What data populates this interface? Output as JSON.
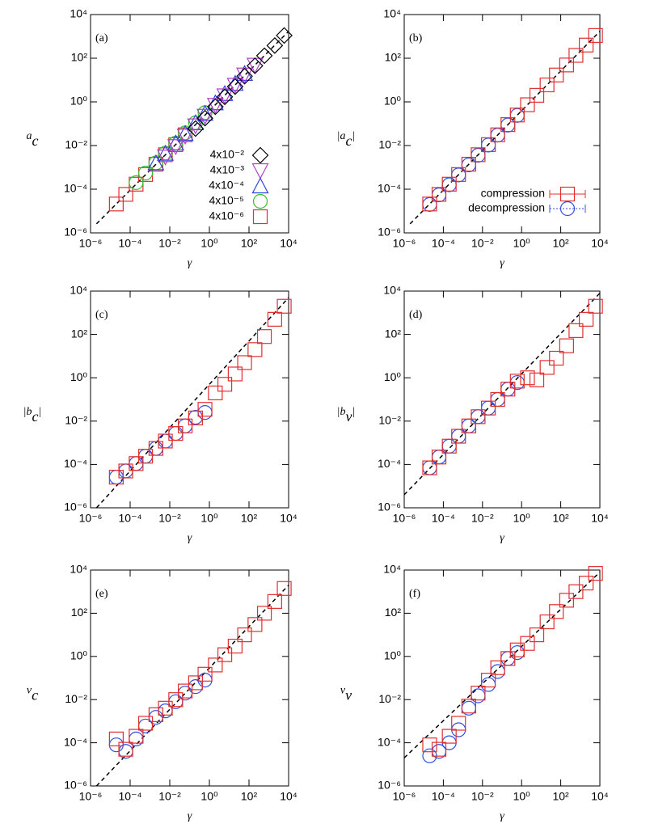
{
  "chart_data": [
    {
      "type": "scatter",
      "panel": "(a)",
      "xscale": "log",
      "yscale": "log",
      "xlabel": "γ",
      "ylabel": [
        {
          "text": "a"
        },
        {
          "text": "c",
          "sub": true
        }
      ],
      "xlim": [
        1e-06,
        10000.0
      ],
      "ylim": [
        1e-06,
        10000.0
      ],
      "xticks": [
        {
          "value": 1e-06,
          "label": "10⁻⁶"
        },
        {
          "value": 0.0001,
          "label": "10⁻⁴"
        },
        {
          "value": 0.01,
          "label": "10⁻²"
        },
        {
          "value": 1,
          "label": "10⁰"
        },
        {
          "value": 100,
          "label": "10²"
        },
        {
          "value": 10000,
          "label": "10⁴"
        }
      ],
      "yticks": [
        {
          "value": 1e-06,
          "label": "10⁻⁶"
        },
        {
          "value": 0.0001,
          "label": "10⁻⁴"
        },
        {
          "value": 0.01,
          "label": "10⁻²"
        },
        {
          "value": 1,
          "label": "10⁰"
        },
        {
          "value": 100,
          "label": "10²"
        },
        {
          "value": 10000,
          "label": "10⁴"
        }
      ],
      "legend": "bottom-right",
      "fit": {
        "x": [
          2e-06,
          10000.0
        ],
        "values": [
          2.6e-06,
          1700
        ]
      },
      "series": [
        {
          "name": "4x10⁻²",
          "marker": "diamond",
          "color": "#000000",
          "x": [
            0.2,
            0.6,
            2,
            6,
            20,
            60,
            200,
            600,
            2000,
            6000
          ],
          "values": [
            0.06,
            0.18,
            0.6,
            1.7,
            5,
            15,
            45,
            130,
            380,
            1100
          ]
        },
        {
          "name": "4x10⁻³",
          "marker": "triangle-down",
          "color": "#b040c8",
          "x": [
            0.006,
            0.02,
            0.06,
            0.2,
            0.6,
            2,
            6,
            20,
            60,
            200
          ],
          "values": [
            0.003,
            0.009,
            0.027,
            0.08,
            0.22,
            0.7,
            1.9,
            5.8,
            17,
            48
          ]
        },
        {
          "name": "4x10⁻⁴",
          "marker": "triangle-up",
          "color": "#3040e0",
          "x": [
            0.002,
            0.006,
            0.02,
            0.06,
            0.2,
            0.6,
            2,
            6,
            20,
            60
          ],
          "values": [
            0.0016,
            0.0044,
            0.013,
            0.036,
            0.11,
            0.3,
            0.9,
            2.4,
            7,
            20
          ]
        },
        {
          "name": "4x10⁻⁵",
          "marker": "circle",
          "color": "#30c030",
          "x": [
            0.0002,
            0.0006,
            0.002,
            0.006,
            0.02,
            0.06,
            0.2,
            0.6
          ],
          "values": [
            0.0002,
            0.00055,
            0.0016,
            0.0045,
            0.013,
            0.038,
            0.11,
            0.32
          ]
        },
        {
          "name": "4x10⁻⁶",
          "marker": "square",
          "color": "#e03030",
          "x": [
            2e-05,
            6e-05,
            0.0002,
            0.0006,
            0.002,
            0.006,
            0.02,
            0.06
          ],
          "values": [
            2.1e-05,
            5.8e-05,
            0.00017,
            0.00047,
            0.0014,
            0.0038,
            0.011,
            0.031
          ]
        }
      ]
    },
    {
      "type": "scatter",
      "panel": "(b)",
      "xscale": "log",
      "yscale": "log",
      "xlabel": "γ",
      "ylabel": [
        {
          "text": "|a"
        },
        {
          "text": "c",
          "sub": true
        },
        {
          "text": "|"
        }
      ],
      "xlim": [
        1e-06,
        10000.0
      ],
      "ylim": [
        1e-06,
        10000.0
      ],
      "xticks": [
        {
          "value": 1e-06,
          "label": "10⁻⁶"
        },
        {
          "value": 0.0001,
          "label": "10⁻⁴"
        },
        {
          "value": 0.01,
          "label": "10⁻²"
        },
        {
          "value": 1,
          "label": "10⁰"
        },
        {
          "value": 100,
          "label": "10²"
        },
        {
          "value": 10000,
          "label": "10⁴"
        }
      ],
      "yticks": [
        {
          "value": 1e-06,
          "label": "10⁻⁶"
        },
        {
          "value": 0.0001,
          "label": "10⁻⁴"
        },
        {
          "value": 0.01,
          "label": "10⁻²"
        },
        {
          "value": 1,
          "label": "10⁰"
        },
        {
          "value": 100,
          "label": "10²"
        },
        {
          "value": 10000,
          "label": "10⁴"
        }
      ],
      "legend": "bottom-right",
      "fit": {
        "x": [
          2e-06,
          10000.0
        ],
        "values": [
          2.6e-06,
          1700
        ]
      },
      "series": [
        {
          "name": "compression",
          "marker": "square",
          "color": "#e03030",
          "line_style": "solid",
          "x": [
            2e-05,
            6e-05,
            0.0002,
            0.0006,
            0.002,
            0.006,
            0.02,
            0.06,
            0.2,
            0.6,
            2,
            6,
            20,
            60,
            200,
            600,
            2000,
            6000
          ],
          "values": [
            2.1e-05,
            5.8e-05,
            0.00017,
            0.00047,
            0.0014,
            0.0038,
            0.011,
            0.031,
            0.091,
            0.25,
            0.74,
            2.0,
            6.0,
            17,
            49,
            135,
            400,
            1100
          ]
        },
        {
          "name": "decompression",
          "marker": "circle",
          "color": "#3050e0",
          "line_style": "dotted",
          "x": [
            2e-05,
            6e-05,
            0.0002,
            0.0006,
            0.002,
            0.006,
            0.02,
            0.06,
            0.2,
            0.6
          ],
          "values": [
            2e-05,
            5.5e-05,
            0.00016,
            0.00045,
            0.0013,
            0.0036,
            0.0105,
            0.03,
            0.087,
            0.24
          ]
        }
      ]
    },
    {
      "type": "scatter",
      "panel": "(c)",
      "xscale": "log",
      "yscale": "log",
      "xlabel": "γ",
      "ylabel": [
        {
          "text": "|b"
        },
        {
          "text": "c",
          "sub": true
        },
        {
          "text": "|"
        }
      ],
      "xlim": [
        1e-06,
        10000.0
      ],
      "ylim": [
        1e-06,
        10000.0
      ],
      "xticks": [
        {
          "value": 1e-06,
          "label": "10⁻⁶"
        },
        {
          "value": 0.0001,
          "label": "10⁻⁴"
        },
        {
          "value": 0.01,
          "label": "10⁻²"
        },
        {
          "value": 1,
          "label": "10⁰"
        },
        {
          "value": 100,
          "label": "10²"
        },
        {
          "value": 10000,
          "label": "10⁴"
        }
      ],
      "yticks": [
        {
          "value": 1e-06,
          "label": "10⁻⁶"
        },
        {
          "value": 0.0001,
          "label": "10⁻⁴"
        },
        {
          "value": 0.01,
          "label": "10⁻²"
        },
        {
          "value": 1,
          "label": "10⁰"
        },
        {
          "value": 100,
          "label": "10²"
        },
        {
          "value": 10000,
          "label": "10⁴"
        }
      ],
      "fit": {
        "x": [
          2e-06,
          10000.0
        ],
        "values": [
          1e-06,
          5000
        ]
      },
      "series": [
        {
          "marker": "square",
          "color": "#e03030",
          "x": [
            2e-05,
            6e-05,
            0.0002,
            0.0006,
            0.002,
            0.006,
            0.02,
            0.06,
            0.2,
            0.6,
            2,
            6,
            20,
            60,
            200,
            600,
            2000,
            6000
          ],
          "values": [
            2.6e-05,
            5e-05,
            0.00011,
            0.00024,
            0.00055,
            0.0012,
            0.0027,
            0.006,
            0.014,
            0.035,
            0.2,
            0.5,
            1.5,
            5,
            20,
            80,
            500,
            2000
          ]
        },
        {
          "marker": "circle",
          "color": "#3050e0",
          "x": [
            2e-05,
            6e-05,
            0.0002,
            0.0006,
            0.002,
            0.006,
            0.02,
            0.06,
            0.2,
            0.6
          ],
          "values": [
            2.6e-05,
            5e-05,
            0.00011,
            0.00024,
            0.00055,
            0.0012,
            0.0027,
            0.006,
            0.015,
            0.025
          ]
        }
      ]
    },
    {
      "type": "scatter",
      "panel": "(d)",
      "xscale": "log",
      "yscale": "log",
      "xlabel": "γ",
      "ylabel": [
        {
          "text": "|b"
        },
        {
          "text": "v",
          "sub": true
        },
        {
          "text": "|"
        }
      ],
      "xlim": [
        1e-06,
        10000.0
      ],
      "ylim": [
        1e-06,
        10000.0
      ],
      "xticks": [
        {
          "value": 1e-06,
          "label": "10⁻⁶"
        },
        {
          "value": 0.0001,
          "label": "10⁻⁴"
        },
        {
          "value": 0.01,
          "label": "10⁻²"
        },
        {
          "value": 1,
          "label": "10⁰"
        },
        {
          "value": 100,
          "label": "10²"
        },
        {
          "value": 10000,
          "label": "10⁴"
        }
      ],
      "yticks": [
        {
          "value": 1e-06,
          "label": "10⁻⁶"
        },
        {
          "value": 0.0001,
          "label": "10⁻⁴"
        },
        {
          "value": 0.01,
          "label": "10⁻²"
        },
        {
          "value": 1,
          "label": "10⁰"
        },
        {
          "value": 100,
          "label": "10²"
        },
        {
          "value": 10000,
          "label": "10⁴"
        }
      ],
      "fit": {
        "x": [
          1e-06,
          10000.0
        ],
        "values": [
          4e-06,
          8000
        ]
      },
      "series": [
        {
          "marker": "square",
          "color": "#e03030",
          "x": [
            2e-05,
            6e-05,
            0.0002,
            0.0006,
            0.002,
            0.006,
            0.02,
            0.06,
            0.2,
            0.6,
            2,
            6,
            20,
            60,
            200,
            600,
            2000,
            6000
          ],
          "values": [
            7e-05,
            0.00022,
            0.0007,
            0.002,
            0.006,
            0.016,
            0.04,
            0.1,
            0.3,
            0.7,
            1,
            0.8,
            3,
            8,
            30,
            150,
            500,
            2000
          ]
        },
        {
          "marker": "circle",
          "color": "#3050e0",
          "x": [
            2e-05,
            6e-05,
            0.0002,
            0.0006,
            0.002,
            0.006,
            0.02,
            0.06,
            0.2,
            0.6
          ],
          "values": [
            7e-05,
            0.00022,
            0.0007,
            0.002,
            0.006,
            0.016,
            0.04,
            0.1,
            0.3,
            0.6
          ]
        }
      ]
    },
    {
      "type": "scatter",
      "panel": "(e)",
      "xscale": "log",
      "yscale": "log",
      "xlabel": "γ",
      "ylabel": [
        {
          "text": "v"
        },
        {
          "text": "c",
          "sub": true
        }
      ],
      "xlim": [
        1e-06,
        10000.0
      ],
      "ylim": [
        1e-06,
        10000.0
      ],
      "xticks": [
        {
          "value": 1e-06,
          "label": "10⁻⁶"
        },
        {
          "value": 0.0001,
          "label": "10⁻⁴"
        },
        {
          "value": 0.01,
          "label": "10⁻²"
        },
        {
          "value": 1,
          "label": "10⁰"
        },
        {
          "value": 100,
          "label": "10²"
        },
        {
          "value": 10000,
          "label": "10⁴"
        }
      ],
      "yticks": [
        {
          "value": 1e-06,
          "label": "10⁻⁶"
        },
        {
          "value": 0.0001,
          "label": "10⁻⁴"
        },
        {
          "value": 0.01,
          "label": "10⁻²"
        },
        {
          "value": 1,
          "label": "10⁰"
        },
        {
          "value": 100,
          "label": "10²"
        },
        {
          "value": 10000,
          "label": "10⁴"
        }
      ],
      "fit": {
        "x": [
          2e-06,
          10000.0
        ],
        "values": [
          1e-06,
          2000
        ]
      },
      "series": [
        {
          "marker": "square",
          "color": "#e03030",
          "x": [
            2e-05,
            6e-05,
            0.0002,
            0.0006,
            0.002,
            0.006,
            0.02,
            0.06,
            0.2,
            0.6,
            2,
            6,
            20,
            60,
            200,
            600,
            2000,
            6000
          ],
          "values": [
            0.00015,
            5e-05,
            0.0002,
            0.0008,
            0.002,
            0.004,
            0.01,
            0.025,
            0.06,
            0.15,
            0.4,
            1.2,
            3,
            10,
            30,
            100,
            350,
            1400
          ]
        },
        {
          "marker": "circle",
          "color": "#3050e0",
          "x": [
            2e-05,
            6e-05,
            0.0002,
            0.0006,
            0.002,
            0.006,
            0.02,
            0.06,
            0.2,
            0.6
          ],
          "values": [
            8e-05,
            4e-05,
            0.00015,
            0.0006,
            0.0015,
            0.003,
            0.008,
            0.02,
            0.04,
            0.08
          ]
        }
      ]
    },
    {
      "type": "scatter",
      "panel": "(f)",
      "xscale": "log",
      "yscale": "log",
      "xlabel": "γ",
      "ylabel": [
        {
          "text": "v"
        },
        {
          "text": "v",
          "sub": true
        }
      ],
      "xlim": [
        1e-06,
        10000.0
      ],
      "ylim": [
        1e-06,
        10000.0
      ],
      "xticks": [
        {
          "value": 1e-06,
          "label": "10⁻⁶"
        },
        {
          "value": 0.0001,
          "label": "10⁻⁴"
        },
        {
          "value": 0.01,
          "label": "10⁻²"
        },
        {
          "value": 1,
          "label": "10⁰"
        },
        {
          "value": 100,
          "label": "10²"
        },
        {
          "value": 10000,
          "label": "10⁴"
        }
      ],
      "yticks": [
        {
          "value": 1e-06,
          "label": "10⁻⁶"
        },
        {
          "value": 0.0001,
          "label": "10⁻⁴"
        },
        {
          "value": 0.01,
          "label": "10⁻²"
        },
        {
          "value": 1,
          "label": "10⁰"
        },
        {
          "value": 100,
          "label": "10²"
        },
        {
          "value": 10000,
          "label": "10⁴"
        }
      ],
      "fit": {
        "x": [
          1e-06,
          10000.0
        ],
        "values": [
          2e-05,
          8000
        ]
      },
      "series": [
        {
          "marker": "square",
          "color": "#e03030",
          "x": [
            2e-05,
            6e-05,
            0.0002,
            0.0006,
            0.002,
            0.006,
            0.02,
            0.06,
            0.2,
            0.6,
            2,
            6,
            20,
            60,
            200,
            600,
            2000,
            6000
          ],
          "values": [
            8e-05,
            5e-05,
            0.0002,
            0.0008,
            0.005,
            0.02,
            0.08,
            0.3,
            0.8,
            2,
            4,
            10,
            40,
            120,
            400,
            1000,
            2500,
            7000
          ]
        },
        {
          "marker": "circle",
          "color": "#3050e0",
          "x": [
            2e-05,
            6e-05,
            0.0002,
            0.0006,
            0.002,
            0.006,
            0.02,
            0.06,
            0.2,
            0.6
          ],
          "values": [
            2.5e-05,
            4e-05,
            0.0001,
            0.0004,
            0.004,
            0.015,
            0.05,
            0.2,
            0.8,
            1.5
          ]
        }
      ]
    }
  ]
}
